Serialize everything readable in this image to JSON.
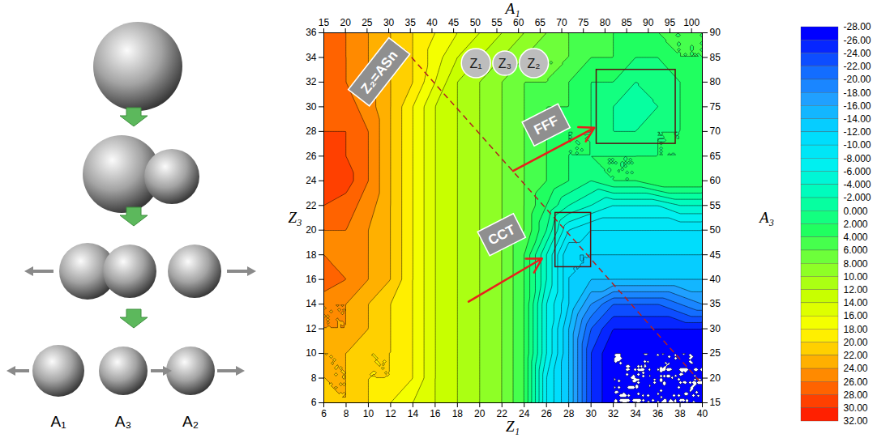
{
  "diagram": {
    "labels": [
      "A₁",
      "A₃",
      "A₂"
    ]
  },
  "chart_data": {
    "type": "contour",
    "x_label": "Z₁",
    "y_label": "Z₃",
    "x2_label": "A₁",
    "y2_label": "A₃",
    "xlim": [
      6,
      40
    ],
    "xticks": [
      6,
      8,
      10,
      12,
      14,
      16,
      18,
      20,
      22,
      24,
      26,
      28,
      30,
      32,
      34,
      36,
      38,
      40
    ],
    "ylim": [
      6,
      36
    ],
    "yticks": [
      6,
      8,
      10,
      12,
      14,
      16,
      18,
      20,
      22,
      24,
      26,
      28,
      30,
      32,
      34,
      36
    ],
    "x2lim": [
      15,
      102.5
    ],
    "x2ticks": [
      15,
      20,
      25,
      30,
      35,
      40,
      45,
      50,
      55,
      60,
      65,
      70,
      75,
      80,
      85,
      90,
      95,
      100
    ],
    "y2lim": [
      15,
      90
    ],
    "y2ticks": [
      15,
      20,
      25,
      30,
      35,
      40,
      45,
      50,
      55,
      60,
      65,
      70,
      75,
      80,
      85,
      90
    ],
    "x": [
      6,
      8,
      10,
      12,
      14,
      16,
      18,
      20,
      22,
      24,
      26,
      28,
      30,
      32,
      34,
      36,
      38,
      40
    ],
    "y": [
      6,
      8,
      10,
      12,
      14,
      16,
      18,
      20,
      22,
      24,
      26,
      28,
      30,
      32,
      34,
      36
    ],
    "cells": [
      [
        20,
        22,
        20,
        18,
        16,
        14,
        12,
        10,
        8,
        4,
        -8,
        -14,
        -24,
        -28,
        -28,
        -28,
        -28,
        -28
      ],
      [
        22,
        22,
        20,
        20,
        18,
        14,
        12,
        10,
        8,
        4,
        -8,
        -14,
        -24,
        -28,
        -28,
        -28,
        -28,
        -28
      ],
      [
        22,
        22,
        20,
        20,
        18,
        14,
        12,
        10,
        8,
        4,
        -6,
        -14,
        -24,
        -28,
        -28,
        -28,
        -28,
        -28
      ],
      [
        24,
        24,
        22,
        20,
        18,
        14,
        12,
        10,
        8,
        4,
        -6,
        -14,
        -22,
        -26,
        -26,
        -26,
        -26,
        -26
      ],
      [
        24,
        24,
        22,
        20,
        18,
        14,
        12,
        10,
        8,
        4,
        -6,
        -12,
        -18,
        -22,
        -22,
        -22,
        -20,
        -18
      ],
      [
        28,
        26,
        24,
        22,
        18,
        14,
        12,
        10,
        8,
        4,
        -4,
        -12,
        -14,
        -14,
        -14,
        -14,
        -14,
        -14
      ],
      [
        26,
        25,
        24,
        22,
        18,
        14,
        12,
        10,
        8,
        4,
        -4,
        -12,
        -12,
        -12,
        -12,
        -12,
        -12,
        -12
      ],
      [
        26,
        26,
        24,
        22,
        18,
        14,
        12,
        10,
        8,
        6,
        0,
        -8,
        -10,
        -10,
        -10,
        -10,
        -10,
        -10
      ],
      [
        28,
        27,
        25,
        22,
        18,
        14,
        12,
        10,
        8,
        6,
        2,
        -2,
        -4,
        -6,
        -6,
        -6,
        -4,
        -4
      ],
      [
        30,
        29,
        26,
        22,
        18,
        14,
        12,
        10,
        8,
        6,
        4,
        2,
        0,
        2,
        2,
        4,
        4,
        4
      ],
      [
        29,
        28,
        26,
        22,
        18,
        14,
        12,
        10,
        8,
        6,
        4,
        2,
        2,
        2,
        2,
        2,
        2,
        4
      ],
      [
        28,
        28,
        26,
        22,
        18,
        14,
        12,
        10,
        8,
        6,
        4,
        2,
        2,
        0,
        0,
        2,
        2,
        4
      ],
      [
        28,
        27,
        25,
        22,
        18,
        14,
        12,
        10,
        8,
        6,
        4,
        4,
        2,
        0,
        -2,
        0,
        2,
        4
      ],
      [
        28,
        26,
        24,
        22,
        20,
        16,
        12,
        10,
        8,
        6,
        6,
        4,
        2,
        2,
        0,
        0,
        2,
        4
      ],
      [
        27,
        26,
        24,
        22,
        20,
        17,
        14,
        12,
        10,
        8,
        6,
        6,
        4,
        4,
        2,
        2,
        4,
        4
      ],
      [
        26,
        26,
        24,
        22,
        20,
        18,
        16,
        14,
        12,
        10,
        8,
        6,
        6,
        4,
        4,
        4,
        4,
        4
      ]
    ],
    "colorbar": {
      "lim": [
        -28,
        32
      ],
      "ticks": [
        {
          "value": -28,
          "label": "-28.00"
        },
        {
          "value": -26,
          "label": "-26.00"
        },
        {
          "value": -24,
          "label": "-24.00"
        },
        {
          "value": -22,
          "label": "-22.00"
        },
        {
          "value": -20,
          "label": "-20.00"
        },
        {
          "value": -18,
          "label": "-18.00"
        },
        {
          "value": -16,
          "label": "-16.00"
        },
        {
          "value": -14,
          "label": "-14.00"
        },
        {
          "value": -12,
          "label": "-12.00"
        },
        {
          "value": -10,
          "label": "-10.00"
        },
        {
          "value": -8,
          "label": "-8.000"
        },
        {
          "value": -6,
          "label": "-6.000"
        },
        {
          "value": -4,
          "label": "-4.000"
        },
        {
          "value": -2,
          "label": "-2.000"
        },
        {
          "value": 0,
          "label": "0.000"
        },
        {
          "value": 2,
          "label": "2.000"
        },
        {
          "value": 4,
          "label": "4.000"
        },
        {
          "value": 6,
          "label": "6.000"
        },
        {
          "value": 8,
          "label": "8.000"
        },
        {
          "value": 10,
          "label": "10.00"
        },
        {
          "value": 12,
          "label": "12.00"
        },
        {
          "value": 14,
          "label": "14.00"
        },
        {
          "value": 16,
          "label": "16.00"
        },
        {
          "value": 18,
          "label": "18.00"
        },
        {
          "value": 20,
          "label": "20.00"
        },
        {
          "value": 22,
          "label": "22.00"
        },
        {
          "value": 24,
          "label": "24.00"
        },
        {
          "value": 26,
          "label": "26.00"
        },
        {
          "value": 28,
          "label": "28.00"
        },
        {
          "value": 30,
          "label": "30.00"
        },
        {
          "value": 32,
          "label": "32.00"
        }
      ]
    },
    "annotations": [
      {
        "text": "Z₂=ASn",
        "x": 11,
        "y": 32.8
      },
      {
        "text": "FFF",
        "x": 26,
        "y": 28.5
      },
      {
        "text": "CCT",
        "x": 22,
        "y": 19.6
      }
    ],
    "circles": [
      {
        "text": "Z₁",
        "x": 19.7,
        "y": 33.5
      },
      {
        "text": "Z₃",
        "x": 22.3,
        "y": 33.5
      },
      {
        "text": "Z₂",
        "x": 24.9,
        "y": 33.5
      }
    ],
    "arrows": [
      {
        "x1": 19,
        "y1": 14.2,
        "x2": 25.6,
        "y2": 17.7
      },
      {
        "x1": 23,
        "y1": 24.8,
        "x2": 30.3,
        "y2": 28.3
      }
    ],
    "boxes": [
      {
        "x1": 26.8,
        "y1": 17,
        "x2": 30,
        "y2": 21.4
      },
      {
        "x1": 30.5,
        "y1": 27,
        "x2": 37.6,
        "y2": 33
      }
    ],
    "dashed_line": {
      "x1": 13.3,
      "y1": 34.6,
      "x2": 40,
      "y2": 7.5
    }
  }
}
